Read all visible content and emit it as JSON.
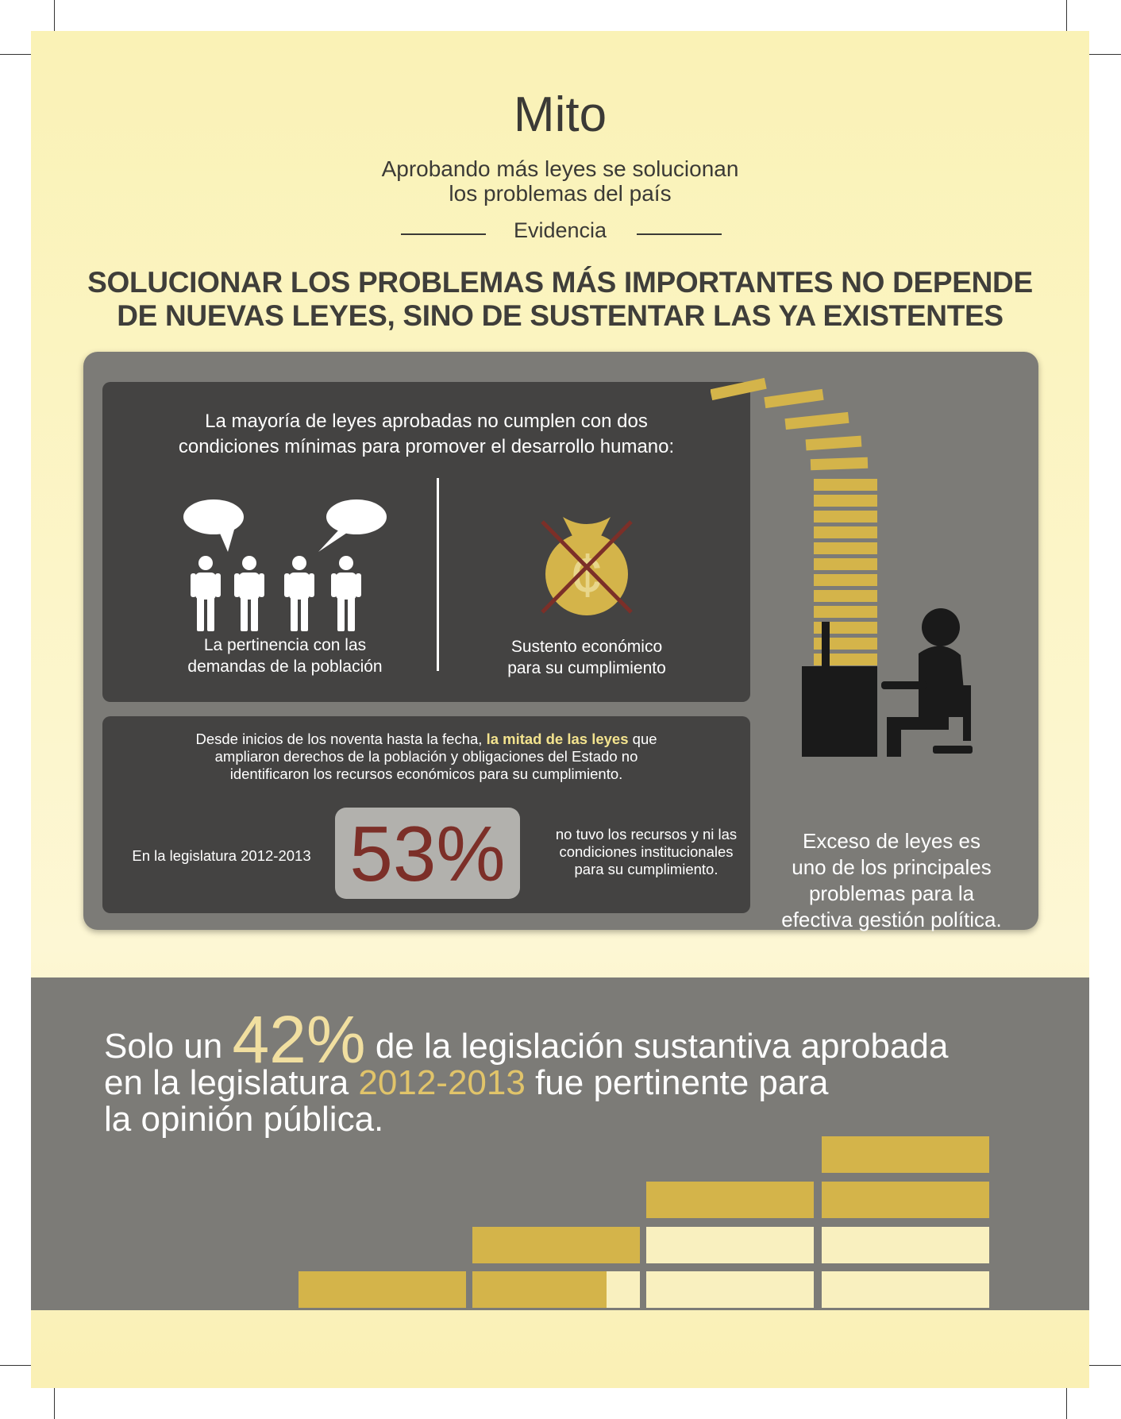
{
  "header": {
    "title": "Mito",
    "subtitle_line1": "Aprobando más leyes se solucionan",
    "subtitle_line2": "los problemas del país",
    "evidence_label": "Evidencia"
  },
  "headline": {
    "line1": "SOLUCIONAR LOS PROBLEMAS MÁS IMPORTANTES NO DEPENDE",
    "line2": "DE NUEVAS LEYES, SINO DE SUSTENTAR LAS YA EXISTENTES"
  },
  "conditions": {
    "intro_line1": "La mayoría de leyes aprobadas no cumplen con dos",
    "intro_line2": "condiciones mínimas para promover el desarrollo humano:",
    "left_line1": "La pertinencia con las",
    "left_line2": "demandas de la población",
    "right_line1": "Sustento económico",
    "right_line2": "para su cumplimiento",
    "people_icon": "people-talking-icon",
    "money_icon": "crossed-money-bag-icon"
  },
  "funding": {
    "line1_pre": "Desde inicios de los noventa hasta la fecha, ",
    "line1_highlight": "la mitad de las leyes",
    "line1_post": " que",
    "line2": "ampliaron derechos de la población y obligaciones del Estado no",
    "line3": "identificaron los recursos económicos para su cumplimiento.",
    "legislature_label": "En la legislatura 2012-2013",
    "percent": "53%",
    "note_line1": "no tuvo los recursos y ni las",
    "note_line2": "condiciones institucionales",
    "note_line3": "para su cumplimiento."
  },
  "sidebar": {
    "line1": "Exceso de leyes es",
    "line2": "uno de los principales",
    "line3": "problemas para la",
    "line4": "efectiva gestión política.",
    "icon": "person-at-desk-icon"
  },
  "bottom": {
    "pre": "Solo un ",
    "percent": "42%",
    "line1_post": " de la legislación sustantiva aprobada",
    "line2_pre": "en la legislatura ",
    "year": "2012-2013",
    "line2_post": " fue pertinente para",
    "line3": "la opinión pública.",
    "bars_share": 0.42
  },
  "colors": {
    "background": "#fbf3c0",
    "gray_panel": "#7c7b77",
    "dark_box": "#444342",
    "gold": "#d4b44a",
    "cream": "#f9f0bf",
    "percent53": "#7c2f28",
    "text_dark": "#3b3a36"
  }
}
